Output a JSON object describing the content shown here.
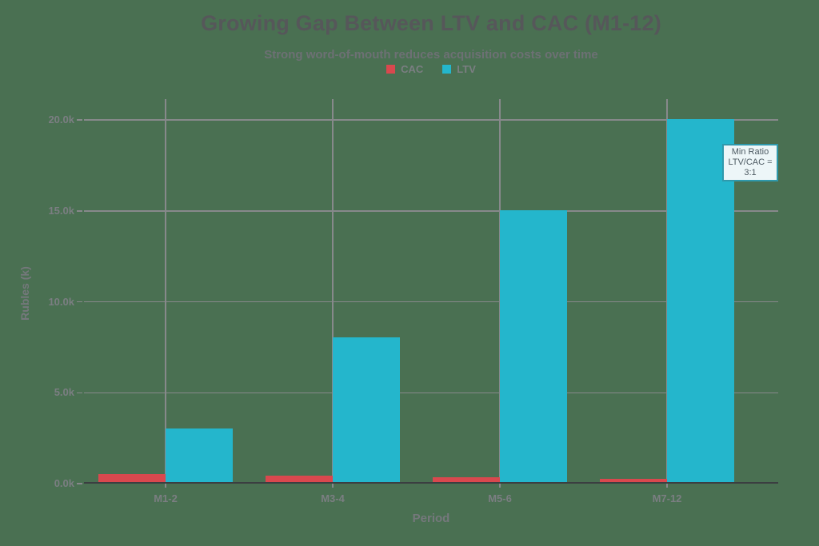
{
  "title": "Growing Gap Between LTV and CAC (M1-12)",
  "subtitle": "Strong word-of-mouth reduces acquisition costs over time",
  "annotation": {
    "line1": "Min Ratio",
    "line2": "LTV/CAC = 3:1"
  },
  "chart_data": {
    "type": "bar",
    "categories": [
      "M1-2",
      "M3-4",
      "M5-6",
      "M7-12"
    ],
    "series": [
      {
        "name": "CAC",
        "color": "#d9484e",
        "values": [
          0.5,
          0.4,
          0.3,
          0.2
        ]
      },
      {
        "name": "LTV",
        "color": "#24b6cc",
        "values": [
          3,
          8,
          15,
          20
        ]
      }
    ],
    "title": "Growing Gap Between LTV and CAC (M1-12)",
    "subtitle": "Strong word-of-mouth reduces acquisition costs over time",
    "xlabel": "Period",
    "ylabel": "Rubles (k)",
    "ylim": [
      0,
      20
    ],
    "yticks": [
      {
        "value": 0,
        "label": "0.0k"
      },
      {
        "value": 5,
        "label": "5.0k"
      },
      {
        "value": 10,
        "label": "10.0k"
      },
      {
        "value": 15,
        "label": "15.0k"
      },
      {
        "value": 20,
        "label": "20.0k"
      }
    ],
    "units": "thousand rubles",
    "grid": true,
    "legend_position": "top-center",
    "annotation": "Min Ratio LTV/CAC = 3:1 (box anchored to right edge near top of tallest LTV bar)"
  },
  "colors": {
    "background": "#4a7052",
    "bar_cac": "#d9484e",
    "bar_ltv": "#24b6cc",
    "gridline": "#87898b",
    "axis_line": "#3b3e41",
    "title_text": "#56575a",
    "subtitle_text": "#6d7074",
    "tick_text": "#7b7e82",
    "axis_title_text": "#75787c",
    "annotation_border": "#2f99ac",
    "annotation_bg": "#edf6f8",
    "annotation_text": "#4d5a62"
  }
}
